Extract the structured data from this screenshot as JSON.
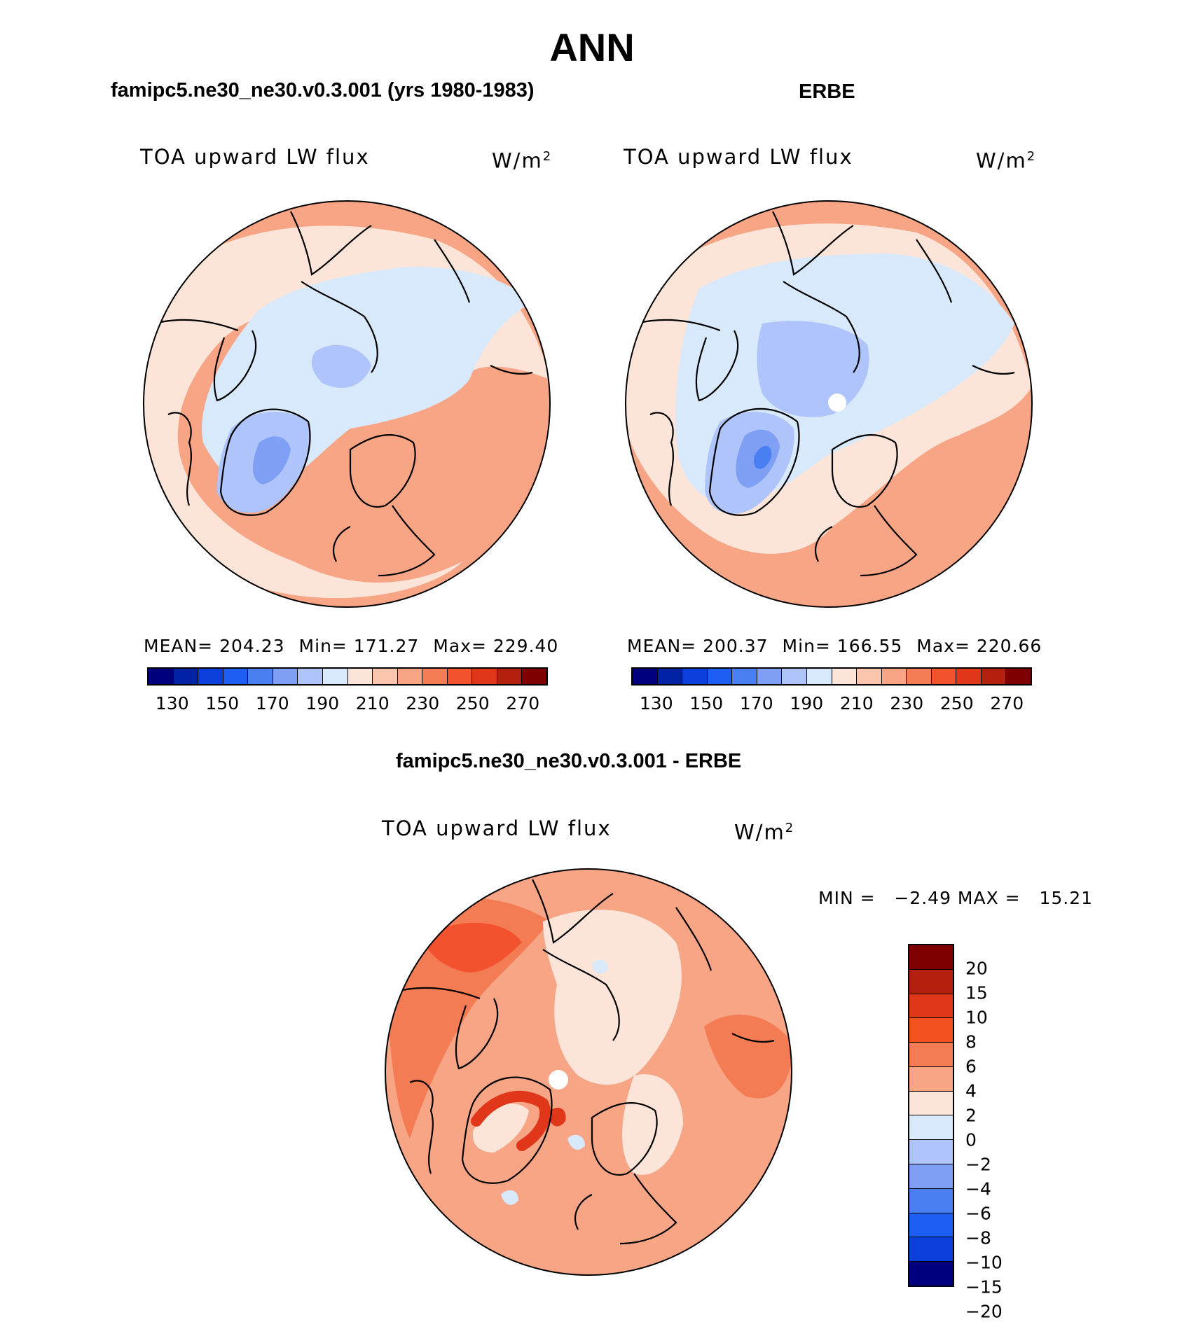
{
  "title": "ANN",
  "panels": {
    "model": {
      "title": "famipc5.ne30_ne30.v0.3.001 (yrs 1980-1983)",
      "variable": "TOA upward LW flux",
      "units": "W/m",
      "units_sup": "2",
      "stats": {
        "mean": "MEAN= 204.23",
        "min": "Min= 171.27",
        "max": "Max= 229.40"
      }
    },
    "obs": {
      "title": "ERBE",
      "variable": "TOA upward LW flux",
      "units": "W/m",
      "units_sup": "2",
      "stats": {
        "mean": "MEAN= 200.37",
        "min": "Min= 166.55",
        "max": "Max= 220.66"
      }
    },
    "diff": {
      "title": "famipc5.ne30_ne30.v0.3.001 - ERBE",
      "variable": "TOA upward LW flux",
      "units": "W/m",
      "units_sup": "2",
      "minmax": "MIN =   −2.49 MAX =   15.21"
    }
  },
  "flux_colorbar": {
    "colors": [
      "#00007f",
      "#0022a5",
      "#0a3fdc",
      "#1f5ef4",
      "#4a7ff2",
      "#7f9ff5",
      "#aec4fa",
      "#d8e9fb",
      "#fce5d8",
      "#fbc5ad",
      "#f7a585",
      "#f47c54",
      "#f2522d",
      "#e0361a",
      "#b4200e",
      "#7e0000"
    ],
    "labels": [
      "130",
      "150",
      "170",
      "190",
      "210",
      "230",
      "250",
      "270"
    ]
  },
  "diff_colorbar": {
    "colors": [
      "#7e0000",
      "#b4200e",
      "#e0361a",
      "#f5501f",
      "#f47c54",
      "#f7a585",
      "#fce5d8",
      "#d8e9fb",
      "#aec4fa",
      "#7f9ff5",
      "#4a7ff2",
      "#1f5ef4",
      "#0a3fdc",
      "#00007f"
    ],
    "labels": [
      "20",
      "15",
      "10",
      "8",
      "6",
      "4",
      "2",
      "0",
      "−2",
      "−4",
      "−6",
      "−8",
      "−10",
      "−15",
      "−20"
    ]
  }
}
